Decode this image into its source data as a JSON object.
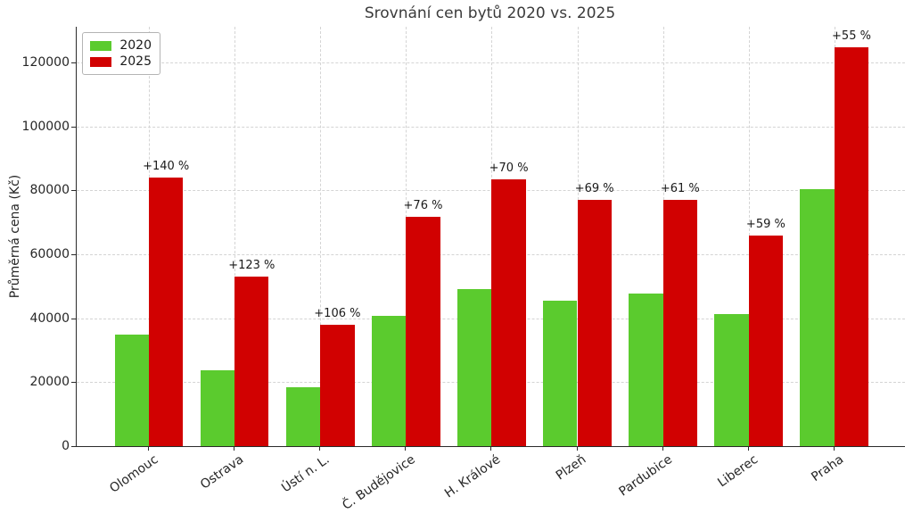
{
  "title": "Srovnání cen bytů 2020 vs. 2025",
  "chart_data": {
    "type": "bar",
    "title": "Srovnání cen bytů 2020 vs. 2025",
    "xlabel": "",
    "ylabel": "Průměrná cena (Kč)",
    "categories": [
      "Olomouc",
      "Ostrava",
      "Ústí n. L.",
      "Č. Budějovice",
      "H. Králové",
      "Plzeň",
      "Pardubice",
      "Liberec",
      "Praha"
    ],
    "series": [
      {
        "name": "2020",
        "color": "#5bcb2e",
        "values": [
          35000,
          23800,
          18400,
          40800,
          49000,
          45600,
          47800,
          41400,
          80400
        ]
      },
      {
        "name": "2025",
        "color": "#d10101",
        "values": [
          84000,
          53000,
          37900,
          71800,
          83300,
          77000,
          77000,
          65800,
          124600
        ]
      }
    ],
    "annotations": [
      "+140 %",
      "+123 %",
      "+106 %",
      "+76 %",
      "+70 %",
      "+69 %",
      "+61 %",
      "+59 %",
      "+55 %"
    ],
    "ylim": [
      0,
      131150
    ],
    "yticks": [
      0,
      20000,
      40000,
      60000,
      80000,
      100000,
      120000
    ],
    "grid": "dashed-both-axes",
    "legend_position": "upper left",
    "background": "#ffffff",
    "grid_color": "#d4d4d4"
  }
}
